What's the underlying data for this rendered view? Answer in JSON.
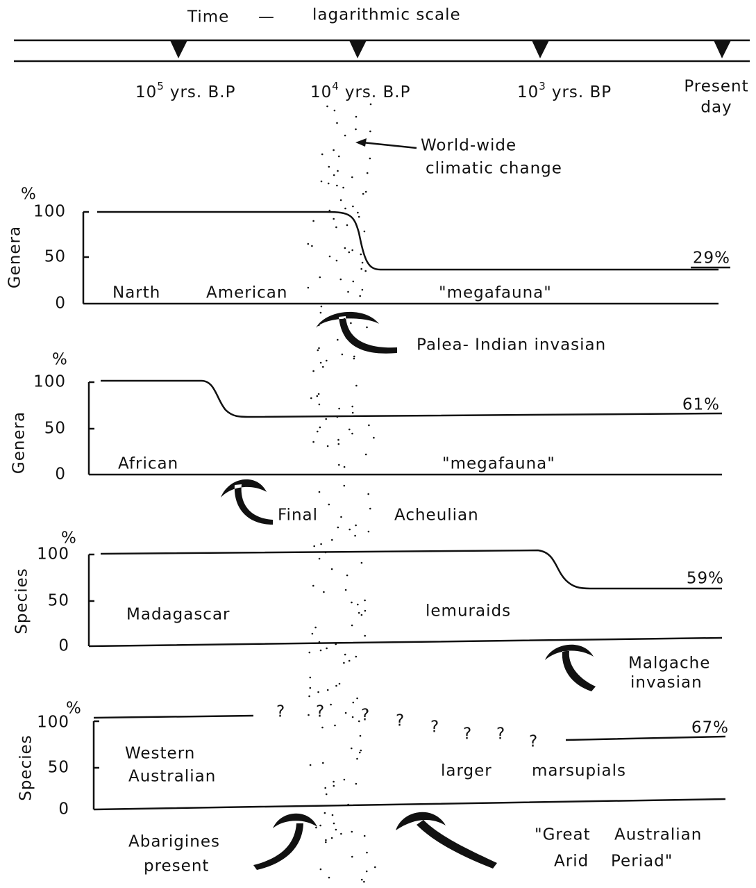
{
  "timeline": {
    "title_left": "Time",
    "dash": "—",
    "title_right": "lagarithmic scale",
    "marks": [
      {
        "base": "10",
        "exp": "5",
        "unit": "yrs. B.P"
      },
      {
        "base": "10",
        "exp": "4",
        "unit": "yrs. B.P"
      },
      {
        "base": "10",
        "exp": "3",
        "unit": "yrs. BP"
      }
    ],
    "present": [
      "Present",
      "day"
    ]
  },
  "climate_note": [
    "World-wide",
    "climatic change"
  ],
  "panels": [
    {
      "unit": "%",
      "y_label": "Genera",
      "yticks": [
        "100",
        "50",
        "0"
      ],
      "labels": [
        "Narth",
        "American",
        "\"megafauna\""
      ],
      "end_value": "29%",
      "event": [
        "Palea- Indian invasian"
      ]
    },
    {
      "unit": "%",
      "y_label": "Genera",
      "yticks": [
        "100",
        "50",
        "0"
      ],
      "labels": [
        "African",
        "\"megafauna\""
      ],
      "end_value": "61%",
      "event": [
        "Final",
        "Acheulian"
      ]
    },
    {
      "unit": "%",
      "y_label": "Species",
      "yticks": [
        "100",
        "50",
        "0"
      ],
      "labels": [
        "Madagascar",
        "lemuraids"
      ],
      "end_value": "59%",
      "event": [
        "Malgache",
        "invasian"
      ]
    },
    {
      "unit": "%",
      "y_label": "Species",
      "yticks": [
        "100",
        "50",
        "0"
      ],
      "labels": [
        "Western",
        "Australian",
        "larger",
        "marsupials"
      ],
      "end_value": "67%",
      "unknown": [
        "?",
        "?",
        "?",
        "?",
        "?",
        "?",
        "?",
        "?"
      ],
      "event": [
        "Abarigines",
        "present"
      ],
      "event2": [
        "\"Great",
        "Australian",
        "Arid",
        "Periad\""
      ]
    }
  ]
}
